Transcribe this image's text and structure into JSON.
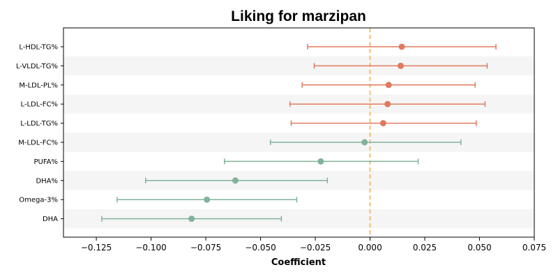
{
  "chart_data": {
    "type": "scatter",
    "subtype": "forest-plot",
    "title": "Liking for marzipan",
    "xlabel": "Coefficient",
    "ylabel": "",
    "xlim": [
      -0.14,
      0.075
    ],
    "xticks": [
      -0.125,
      -0.1,
      -0.075,
      -0.05,
      -0.025,
      0.0,
      0.025,
      0.05,
      0.075
    ],
    "xtick_labels": [
      "−0.125",
      "−0.100",
      "−0.075",
      "−0.050",
      "−0.025",
      "0.000",
      "0.025",
      "0.050",
      "0.075"
    ],
    "reference_line": {
      "x": 0.0,
      "style": "dashed",
      "color": "#f0c070"
    },
    "alternating_row_shading": true,
    "grid": false,
    "colors": {
      "positive": "#e07a5f",
      "negative": "#81b29a",
      "row_shade": "#f5f5f5"
    },
    "categories": [
      "L-HDL-TG%",
      "L-VLDL-TG%",
      "M-LDL-PL%",
      "L-LDL-FC%",
      "L-LDL-TG%",
      "M-LDL-FC%",
      "PUFA%",
      "DHA%",
      "Omega-3%",
      "DHA"
    ],
    "estimates": [
      0.0145,
      0.014,
      0.0085,
      0.008,
      0.006,
      -0.0025,
      -0.0225,
      -0.0615,
      -0.0745,
      -0.0815
    ],
    "ci_lower": [
      -0.0285,
      -0.0255,
      -0.031,
      -0.0365,
      -0.036,
      -0.0455,
      -0.0665,
      -0.1025,
      -0.1155,
      -0.1225
    ],
    "ci_upper": [
      0.0575,
      0.0535,
      0.048,
      0.0525,
      0.0485,
      0.0415,
      0.022,
      -0.0195,
      -0.0335,
      -0.0405
    ]
  }
}
